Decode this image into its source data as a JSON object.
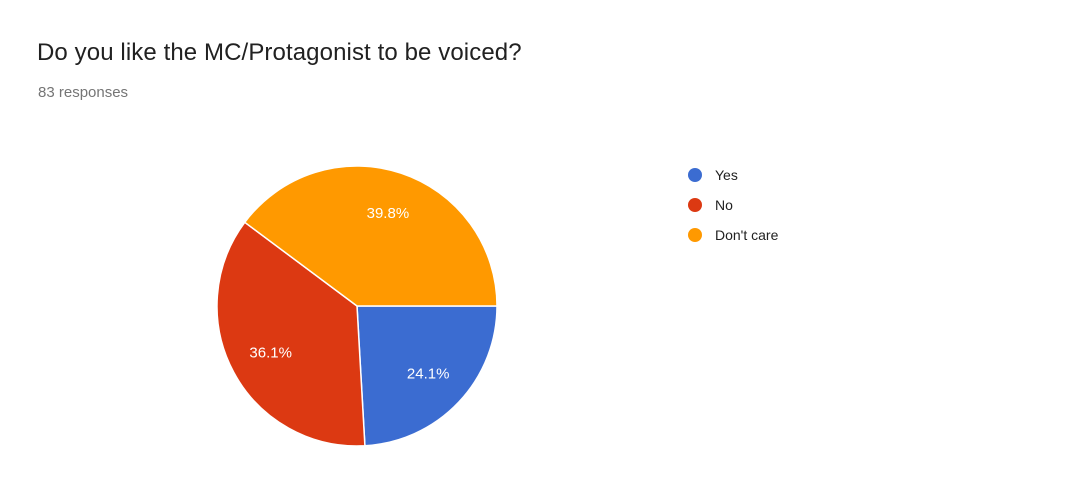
{
  "header": {
    "title": "Do you like the MC/Protagonist to be voiced?",
    "subtitle": "83 responses"
  },
  "chart_data": {
    "type": "pie",
    "title": "Do you like the MC/Protagonist to be voiced?",
    "responses_text": "83 responses",
    "legend_position": "right",
    "start_angle_deg": 0,
    "direction": "clockwise",
    "slice_label_color": "#ffffff",
    "slice_border_color": "#ffffff",
    "slices": [
      {
        "label": "Yes",
        "pct": 24.1,
        "display": "24.1%",
        "color": "#3b6cd1"
      },
      {
        "label": "No",
        "pct": 36.1,
        "display": "36.1%",
        "color": "#dc3912"
      },
      {
        "label": "Don't care",
        "pct": 39.8,
        "display": "39.8%",
        "color": "#ff9900"
      }
    ]
  }
}
